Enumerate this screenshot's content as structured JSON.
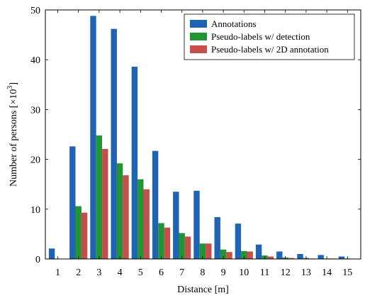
{
  "chart_data": {
    "type": "bar",
    "xlabel": "Distance [m]",
    "ylabel": "Number of persons [×10",
    "ylabel_exponent": "3",
    "ylabel_close": "]",
    "categories": [
      "1",
      "2",
      "3",
      "4",
      "5",
      "6",
      "7",
      "8",
      "9",
      "10",
      "11",
      "12",
      "13",
      "14",
      "15"
    ],
    "ylim": [
      0,
      50
    ],
    "yticks": [
      "0",
      "10",
      "20",
      "30",
      "40",
      "50"
    ],
    "legend_position": "top-right",
    "series": [
      {
        "name": "Annotations",
        "color": "#1f63b4",
        "values": [
          2.1,
          22.6,
          48.8,
          46.2,
          38.6,
          21.7,
          13.5,
          13.7,
          8.4,
          7.1,
          2.9,
          1.5,
          1.0,
          0.8,
          0.5
        ]
      },
      {
        "name": "Pseudo-labels w/ detection",
        "color": "#219536",
        "values": [
          0.0,
          10.6,
          24.8,
          19.2,
          16.0,
          7.2,
          5.2,
          3.1,
          1.9,
          1.6,
          0.7,
          0.3,
          0.2,
          0.1,
          0.1
        ]
      },
      {
        "name": "Pseudo-labels w/ 2D annotation",
        "color": "#c5504b",
        "values": [
          0.0,
          9.3,
          22.1,
          16.8,
          14.0,
          6.3,
          4.5,
          3.1,
          1.4,
          1.5,
          0.5,
          0.2,
          0.1,
          0.1,
          0.0
        ]
      }
    ]
  }
}
